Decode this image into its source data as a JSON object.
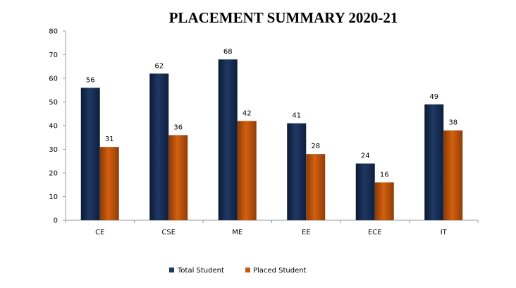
{
  "chart_data": {
    "type": "bar",
    "title": "PLACEMENT SUMMARY 2020-21",
    "xlabel": "",
    "ylabel": "",
    "categories": [
      "CE",
      "CSE",
      "ME",
      "EE",
      "ECE",
      "IT"
    ],
    "series": [
      {
        "name": "Total Student",
        "values": [
          56,
          62,
          68,
          41,
          24,
          49
        ],
        "color": "#1f3864"
      },
      {
        "name": "Placed Student",
        "values": [
          31,
          36,
          42,
          28,
          16,
          38
        ],
        "color": "#c55a11"
      }
    ],
    "ylim": [
      0,
      80
    ],
    "yticks": [
      0,
      10,
      20,
      30,
      40,
      50,
      60,
      70,
      80
    ],
    "grid": false,
    "legend": "bottom",
    "data_labels": true
  }
}
